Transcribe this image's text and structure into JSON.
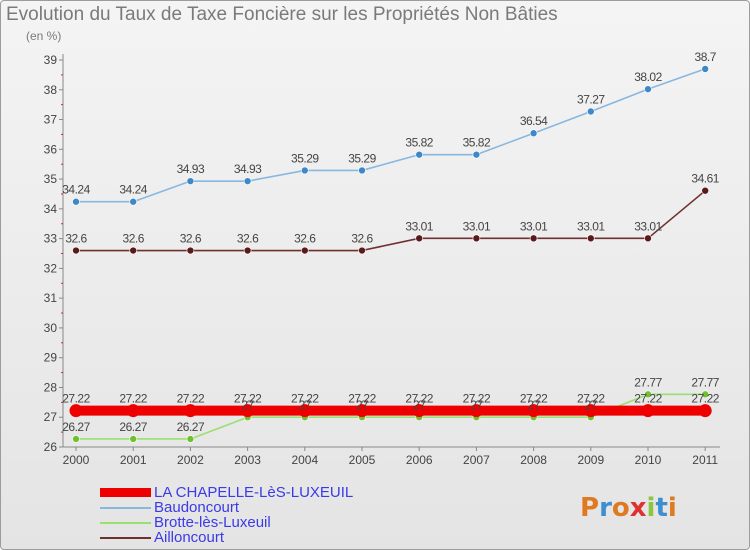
{
  "header": {
    "title": "Evolution du Taux de Taxe Foncière sur les Propriétés Non Bâties",
    "unit": "(en %)"
  },
  "logo": {
    "text": "Proxiti",
    "colors": [
      "#e07a20",
      "#3d8fd0",
      "#e07a20",
      "#e03030",
      "#8cc63f",
      "#3d8fd0",
      "#e07a20"
    ]
  },
  "chart_data": {
    "type": "line",
    "title": "Evolution du Taux de Taxe Foncière sur les Propriétés Non Bâties",
    "ylabel": "(en %)",
    "xlabel": "",
    "x": [
      "2000",
      "2001",
      "2002",
      "2003",
      "2004",
      "2005",
      "2006",
      "2007",
      "2008",
      "2009",
      "2010",
      "2011"
    ],
    "ylim": [
      26,
      39
    ],
    "yticks": [
      "26",
      "27",
      "28",
      "29",
      "30",
      "31",
      "32",
      "33",
      "34",
      "35",
      "36",
      "37",
      "38",
      "39"
    ],
    "grid": false,
    "legend_position": "bottom-left",
    "series": [
      {
        "name": "LA CHAPELLE-LèS-LUXEUIL",
        "color": "#ee0000",
        "marker": "#ee0000",
        "values": [
          27.22,
          27.22,
          27.22,
          27.22,
          27.22,
          27.22,
          27.22,
          27.22,
          27.22,
          27.22,
          27.22,
          27.22
        ],
        "labels": [
          "27.22",
          "27.22",
          "27.22",
          "27.22",
          "27.22",
          "27.22",
          "27.22",
          "27.22",
          "27.22",
          "27.22",
          "27.22",
          "27.22"
        ],
        "style": "thick"
      },
      {
        "name": "Baudoncourt",
        "color": "#88b8e0",
        "marker": "#3f88c8",
        "values": [
          34.24,
          34.24,
          34.93,
          34.93,
          35.29,
          35.29,
          35.82,
          35.82,
          36.54,
          37.27,
          38.02,
          38.7
        ],
        "labels": [
          "34.24",
          "34.24",
          "34.93",
          "34.93",
          "35.29",
          "35.29",
          "35.82",
          "35.82",
          "36.54",
          "37.27",
          "38.02",
          "38.7"
        ],
        "style": "thin"
      },
      {
        "name": "Brotte-lès-Luxeuil",
        "color": "#99e070",
        "marker": "#70c030",
        "values": [
          26.27,
          26.27,
          26.27,
          27,
          27,
          27,
          27,
          27,
          27,
          27,
          27.77,
          27.77
        ],
        "labels": [
          "26.27",
          "26.27",
          "26.27",
          "27",
          "27",
          "27",
          "27",
          "27",
          "27",
          "27",
          "27.77",
          "27.77"
        ],
        "style": "thin"
      },
      {
        "name": "Ailloncourt",
        "color": "#703030",
        "marker": "#5a1a1a",
        "values": [
          32.6,
          32.6,
          32.6,
          32.6,
          32.6,
          32.6,
          33.01,
          33.01,
          33.01,
          33.01,
          33.01,
          34.61
        ],
        "labels": [
          "32.6",
          "32.6",
          "32.6",
          "32.6",
          "32.6",
          "32.6",
          "33.01",
          "33.01",
          "33.01",
          "33.01",
          "33.01",
          "34.61"
        ],
        "style": "thin"
      }
    ]
  }
}
